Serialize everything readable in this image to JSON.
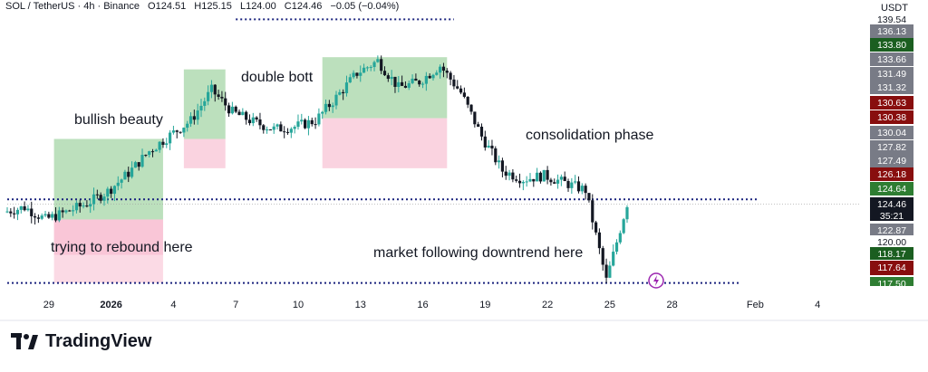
{
  "header": {
    "symbol": "SOL / TetherUS · 4h · Binance",
    "open": "O124.51",
    "high": "H125.15",
    "low": "L124.00",
    "close": "C124.46",
    "change": "−0.05 (−0.04%)"
  },
  "price_axis": {
    "currency": "USDT",
    "labels": [
      {
        "text": "139.54",
        "price": 139.54,
        "bg": "#ffffff",
        "fg": "#131722"
      },
      {
        "text": "136.13",
        "price": 136.13,
        "bg": "#787b86",
        "fg": "#ffffff"
      },
      {
        "text": "133.80",
        "price": 133.8,
        "bg": "#1b5e20",
        "fg": "#ffffff"
      },
      {
        "text": "133.66",
        "price": 133.66,
        "bg": "#787b86",
        "fg": "#ffffff"
      },
      {
        "text": "131.49",
        "price": 131.49,
        "bg": "#787b86",
        "fg": "#ffffff"
      },
      {
        "text": "131.32",
        "price": 131.32,
        "bg": "#787b86",
        "fg": "#ffffff"
      },
      {
        "text": "130.63",
        "price": 130.63,
        "bg": "#880e0e",
        "fg": "#ffffff"
      },
      {
        "text": "130.38",
        "price": 130.38,
        "bg": "#880e0e",
        "fg": "#ffffff"
      },
      {
        "text": "130.04",
        "price": 130.04,
        "bg": "#787b86",
        "fg": "#ffffff"
      },
      {
        "text": "127.82",
        "price": 127.82,
        "bg": "#787b86",
        "fg": "#ffffff"
      },
      {
        "text": "127.49",
        "price": 127.49,
        "bg": "#787b86",
        "fg": "#ffffff"
      },
      {
        "text": "126.18",
        "price": 126.18,
        "bg": "#880e0e",
        "fg": "#ffffff"
      },
      {
        "text": "124.64",
        "price": 124.64,
        "bg": "#2e7d32",
        "fg": "#ffffff"
      },
      {
        "text": "124.46",
        "price": 124.46,
        "bg": "#131722",
        "fg": "#ffffff"
      },
      {
        "text": "35:21",
        "price": 124.46,
        "bg": "#131722",
        "fg": "#ffffff"
      },
      {
        "text": "122.87",
        "price": 122.87,
        "bg": "#787b86",
        "fg": "#ffffff"
      },
      {
        "text": "120.00",
        "price": 120.0,
        "bg": "#ffffff",
        "fg": "#131722"
      },
      {
        "text": "118.17",
        "price": 118.17,
        "bg": "#1b5e20",
        "fg": "#ffffff"
      },
      {
        "text": "117.64",
        "price": 117.64,
        "bg": "#880e0e",
        "fg": "#ffffff"
      },
      {
        "text": "117.50",
        "price": 117.5,
        "bg": "#2e7d32",
        "fg": "#ffffff"
      }
    ]
  },
  "chart_data": {
    "type": "candlestick",
    "title": "",
    "y_range": [
      117.3,
      140.0
    ],
    "x_range": [
      "2025-12-27",
      "2026-02-06"
    ],
    "x_ticks": [
      {
        "label": "29",
        "date": "2025-12-29"
      },
      {
        "label": "2026",
        "date": "2026-01-01"
      },
      {
        "label": "4",
        "date": "2026-01-04"
      },
      {
        "label": "7",
        "date": "2026-01-07"
      },
      {
        "label": "10",
        "date": "2026-01-10"
      },
      {
        "label": "13",
        "date": "2026-01-13"
      },
      {
        "label": "16",
        "date": "2026-01-16"
      },
      {
        "label": "19",
        "date": "2026-01-19"
      },
      {
        "label": "22",
        "date": "2026-01-22"
      },
      {
        "label": "25",
        "date": "2026-01-25"
      },
      {
        "label": "28",
        "date": "2026-01-28"
      },
      {
        "label": "Feb",
        "date": "2026-02-01"
      },
      {
        "label": "4",
        "date": "2026-02-04"
      }
    ],
    "series": [
      {
        "date": "2025-12-27",
        "close": 123.8
      },
      {
        "date": "2025-12-28",
        "close": 124.2
      },
      {
        "date": "2025-12-29",
        "close": 123.2
      },
      {
        "date": "2025-12-30",
        "close": 123.8
      },
      {
        "date": "2025-12-31",
        "close": 124.5
      },
      {
        "date": "2026-01-01",
        "close": 125.5
      },
      {
        "date": "2026-01-02",
        "close": 127.0
      },
      {
        "date": "2026-01-03",
        "close": 128.8
      },
      {
        "date": "2026-01-04",
        "close": 130.1
      },
      {
        "date": "2026-01-05",
        "close": 131.3
      },
      {
        "date": "2026-01-06",
        "close": 133.8
      },
      {
        "date": "2026-01-07",
        "close": 132.0
      },
      {
        "date": "2026-01-08",
        "close": 131.2
      },
      {
        "date": "2026-01-09",
        "close": 130.6
      },
      {
        "date": "2026-01-10",
        "close": 130.8
      },
      {
        "date": "2026-01-11",
        "close": 131.3
      },
      {
        "date": "2026-01-12",
        "close": 133.2
      },
      {
        "date": "2026-01-13",
        "close": 135.2
      },
      {
        "date": "2026-01-14",
        "close": 136.2
      },
      {
        "date": "2026-01-15",
        "close": 134.0
      },
      {
        "date": "2026-01-16",
        "close": 134.5
      },
      {
        "date": "2026-01-17",
        "close": 135.8
      },
      {
        "date": "2026-01-18",
        "close": 133.6
      },
      {
        "date": "2026-01-19",
        "close": 130.0
      },
      {
        "date": "2026-01-20",
        "close": 127.2
      },
      {
        "date": "2026-01-21",
        "close": 126.5
      },
      {
        "date": "2026-01-22",
        "close": 126.8
      },
      {
        "date": "2026-01-23",
        "close": 126.2
      },
      {
        "date": "2026-01-24",
        "close": 125.6
      },
      {
        "date": "2026-01-25",
        "close": 118.2
      },
      {
        "date": "2026-01-26",
        "close": 124.5
      }
    ],
    "levels": [
      {
        "name": "resistance",
        "price": 124.85,
        "color": "#1a237e",
        "style": "dotted"
      },
      {
        "name": "support",
        "price": 118.0,
        "color": "#1a237e",
        "style": "dotted"
      },
      {
        "name": "top",
        "price": 139.6,
        "color": "#1a237e",
        "style": "dotted"
      }
    ],
    "annotations": [
      {
        "text": "bullish beauty"
      },
      {
        "text": "double bott"
      },
      {
        "text": "consolidation phase"
      },
      {
        "text": "trying to rebound here"
      },
      {
        "text": "market following downtrend here"
      }
    ],
    "last_price": 124.46,
    "colors": {
      "up": "#26a69a",
      "down": "#131722",
      "green_zone": "#a5d6a7",
      "red_zone": "#f8bbd0",
      "level": "#1a237e"
    }
  },
  "brand": {
    "name": "TradingView"
  }
}
